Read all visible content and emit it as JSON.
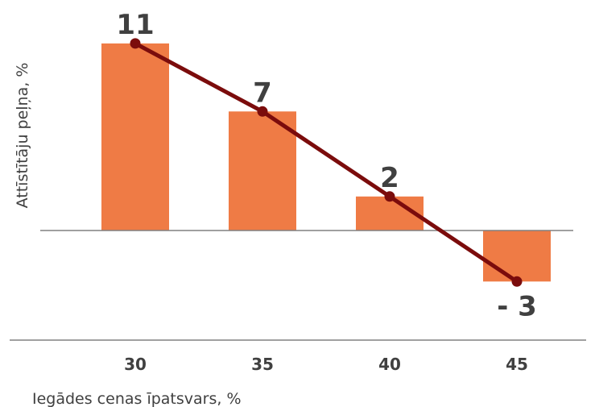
{
  "chart_data": {
    "type": "bar",
    "categories": [
      "30",
      "35",
      "40",
      "45"
    ],
    "values": [
      11,
      7,
      2,
      -3
    ],
    "data_labels": [
      "11",
      "7",
      "2",
      "- 3"
    ],
    "xlabel": "Iegādes cenas īpatsvars, %",
    "ylabel": "Attīstītāju peļņa, %",
    "ylim": [
      -6.5,
      12
    ],
    "line_overlay": true,
    "grid": false,
    "legend": "none"
  },
  "colors": {
    "bar": "#ef7b45",
    "line": "#7b0c0c",
    "axis": "#808080",
    "text": "#404040"
  }
}
